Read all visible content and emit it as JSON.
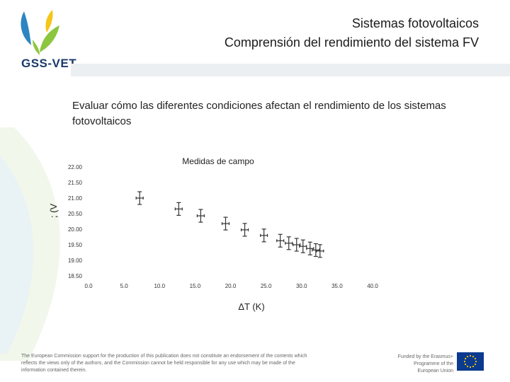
{
  "header": {
    "logo_text": "GSS-VET",
    "title_line1": "Sistemas fotovoltaicos",
    "title_line2": "Comprensión del rendimiento del sistema FV"
  },
  "subtitle": "Evaluar cómo las diferentes condiciones afectan el rendimiento de los sistemas fotovoltaicos",
  "chart_data": {
    "type": "scatter",
    "title": "Medidas de campo",
    "xlabel": "ΔT (K)",
    "ylabel": "; (V",
    "xlim": [
      0,
      40
    ],
    "ylim": [
      18.5,
      22
    ],
    "xticks": [
      "0.0",
      "5.0",
      "10.0",
      "15.0",
      "20.0",
      "25.0",
      "30.0",
      "35.0",
      "40.0"
    ],
    "yticks": [
      "18.50",
      "19.00",
      "19.50",
      "20.00",
      "20.50",
      "21.00",
      "21.50",
      "22.00"
    ],
    "error_bars": true,
    "grid": false,
    "points": [
      {
        "x": 7.2,
        "y": 21.0
      },
      {
        "x": 12.7,
        "y": 20.65
      },
      {
        "x": 15.8,
        "y": 20.43
      },
      {
        "x": 19.3,
        "y": 20.18
      },
      {
        "x": 22.0,
        "y": 19.98
      },
      {
        "x": 24.7,
        "y": 19.8
      },
      {
        "x": 27.0,
        "y": 19.63
      },
      {
        "x": 28.2,
        "y": 19.55
      },
      {
        "x": 29.3,
        "y": 19.5
      },
      {
        "x": 30.2,
        "y": 19.45
      },
      {
        "x": 31.2,
        "y": 19.38
      },
      {
        "x": 32.0,
        "y": 19.33
      },
      {
        "x": 32.6,
        "y": 19.3
      }
    ]
  },
  "footer": {
    "disclaimer": "The European Commission support for the production of this publication does not constitute an endorsement of the contents which reflects the views only of the authors, and the Commission cannot be held responsible for any use which may be made of the information contained therein.",
    "funding": "Funded by the Erasmus+ Programme of the European Union"
  },
  "colors": {
    "logo_green": "#8cc63f",
    "logo_blue": "#2e86c1",
    "logo_yellow": "#f5c518",
    "logo_navy": "#1a3a6b",
    "eu_blue": "#0b3a8f",
    "eu_star": "#ffcc00"
  }
}
